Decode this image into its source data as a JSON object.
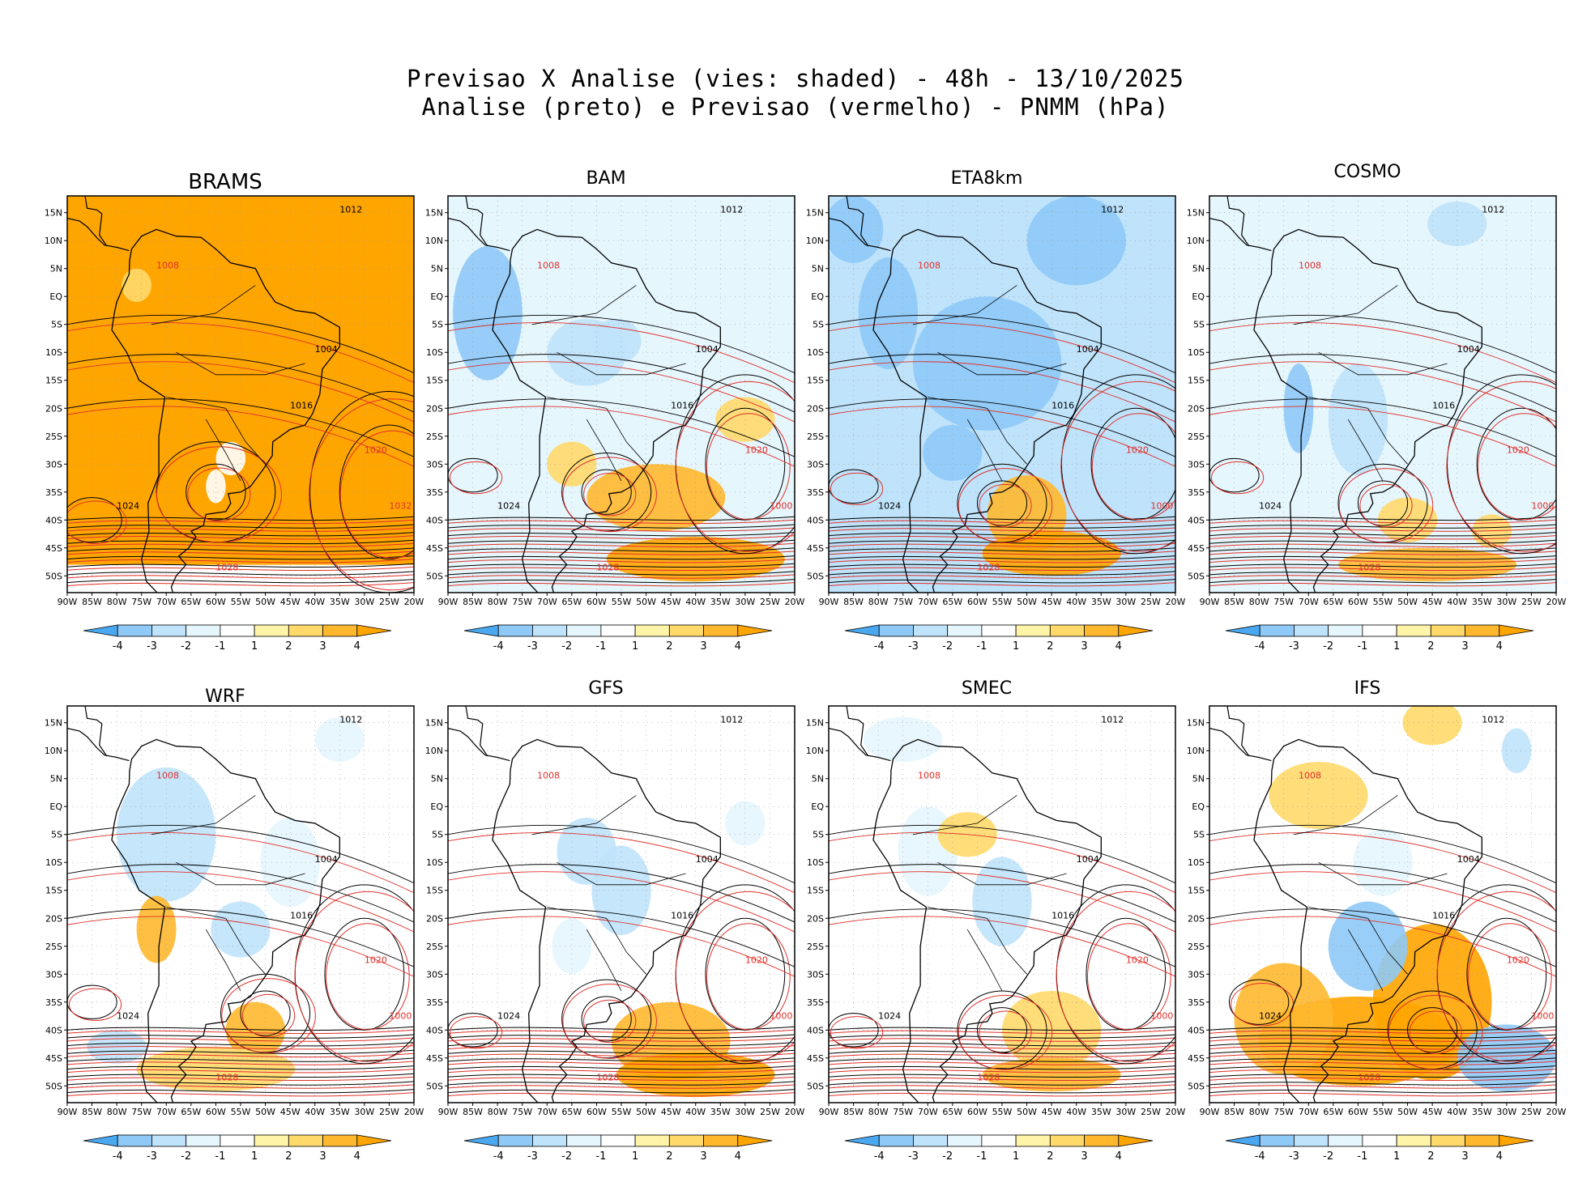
{
  "title": {
    "line1": "Previsao X Analise (vies: shaded) - 48h - 13/10/2025",
    "line2": "Analise (preto) e Previsao (vermelho) - PNMM (hPa)"
  },
  "axes": {
    "lat_labels": [
      "15N",
      "10N",
      "5N",
      "EQ",
      "5S",
      "10S",
      "15S",
      "20S",
      "25S",
      "30S",
      "35S",
      "40S",
      "45S",
      "50S"
    ],
    "lon_labels": [
      "90W",
      "85W",
      "80W",
      "75W",
      "70W",
      "65W",
      "60W",
      "55W",
      "50W",
      "45W",
      "40W",
      "35W",
      "30W",
      "25W",
      "20W"
    ]
  },
  "colorbar": {
    "labels": [
      "-4",
      "-3",
      "-2",
      "-1",
      "1",
      "2",
      "3",
      "4"
    ],
    "colors": [
      "#4aa8f0",
      "#8ec9f7",
      "#bfe3fb",
      "#e6f6fd",
      "#ffffff",
      "#fff4a8",
      "#ffd96a",
      "#ffb82e",
      "#ffa500"
    ]
  },
  "colors": {
    "analysis_contour": "#000000",
    "forecast_contour": "#e0302a",
    "land": "#ffffff"
  },
  "panels": [
    {
      "name": "BRAMS",
      "contour_labels": [
        "1012",
        "1008",
        "1016",
        "1020",
        "1024",
        "1028",
        "1004",
        "1032"
      ]
    },
    {
      "name": "BAM",
      "contour_labels": [
        "1012",
        "1008",
        "1016",
        "1020",
        "1024",
        "1028",
        "1004",
        "1000"
      ]
    },
    {
      "name": "ETA8km",
      "contour_labels": [
        "1012",
        "1008",
        "1016",
        "1020",
        "1024",
        "1028",
        "1004",
        "1000"
      ]
    },
    {
      "name": "COSMO",
      "contour_labels": [
        "1012",
        "1008",
        "1016",
        "1020",
        "1024",
        "1028",
        "1004",
        "1000"
      ]
    },
    {
      "name": "WRF",
      "contour_labels": [
        "1012",
        "1008",
        "1016",
        "1020",
        "1024",
        "1028",
        "1004",
        "1000"
      ]
    },
    {
      "name": "GFS",
      "contour_labels": [
        "1012",
        "1008",
        "1016",
        "1020",
        "1024",
        "1028",
        "1004",
        "1000"
      ]
    },
    {
      "name": "SMEC",
      "contour_labels": [
        "1012",
        "1008",
        "1016",
        "1020",
        "1024",
        "1028",
        "1004",
        "1000"
      ]
    },
    {
      "name": "IFS",
      "contour_labels": [
        "1012",
        "1008",
        "1016",
        "1020",
        "1024",
        "1028",
        "1004",
        "1000"
      ]
    }
  ]
}
